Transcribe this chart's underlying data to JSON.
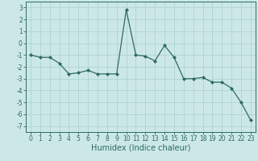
{
  "x": [
    0,
    1,
    2,
    3,
    4,
    5,
    6,
    7,
    8,
    9,
    10,
    11,
    12,
    13,
    14,
    15,
    16,
    17,
    18,
    19,
    20,
    21,
    22,
    23
  ],
  "y": [
    -1.0,
    -1.2,
    -1.2,
    -1.7,
    -2.6,
    -2.5,
    -2.3,
    -2.6,
    -2.6,
    -2.6,
    2.8,
    -1.0,
    -1.1,
    -1.5,
    -0.2,
    -1.2,
    -3.0,
    -3.0,
    -2.9,
    -3.3,
    -3.3,
    -3.8,
    -5.0,
    -6.5
  ],
  "xlabel": "Humidex (Indice chaleur)",
  "ylim": [
    -7.5,
    3.5
  ],
  "xlim": [
    -0.5,
    23.5
  ],
  "yticks": [
    -7,
    -6,
    -5,
    -4,
    -3,
    -2,
    -1,
    0,
    1,
    2,
    3
  ],
  "xticks": [
    0,
    1,
    2,
    3,
    4,
    5,
    6,
    7,
    8,
    9,
    10,
    11,
    12,
    13,
    14,
    15,
    16,
    17,
    18,
    19,
    20,
    21,
    22,
    23
  ],
  "line_color": "#2e6b5e",
  "marker": "D",
  "marker_size": 2.0,
  "bg_color": "#cce8e6",
  "grid_color": "#aed4d1",
  "tick_fontsize": 5.5,
  "xlabel_fontsize": 7.0,
  "linewidth": 0.9
}
